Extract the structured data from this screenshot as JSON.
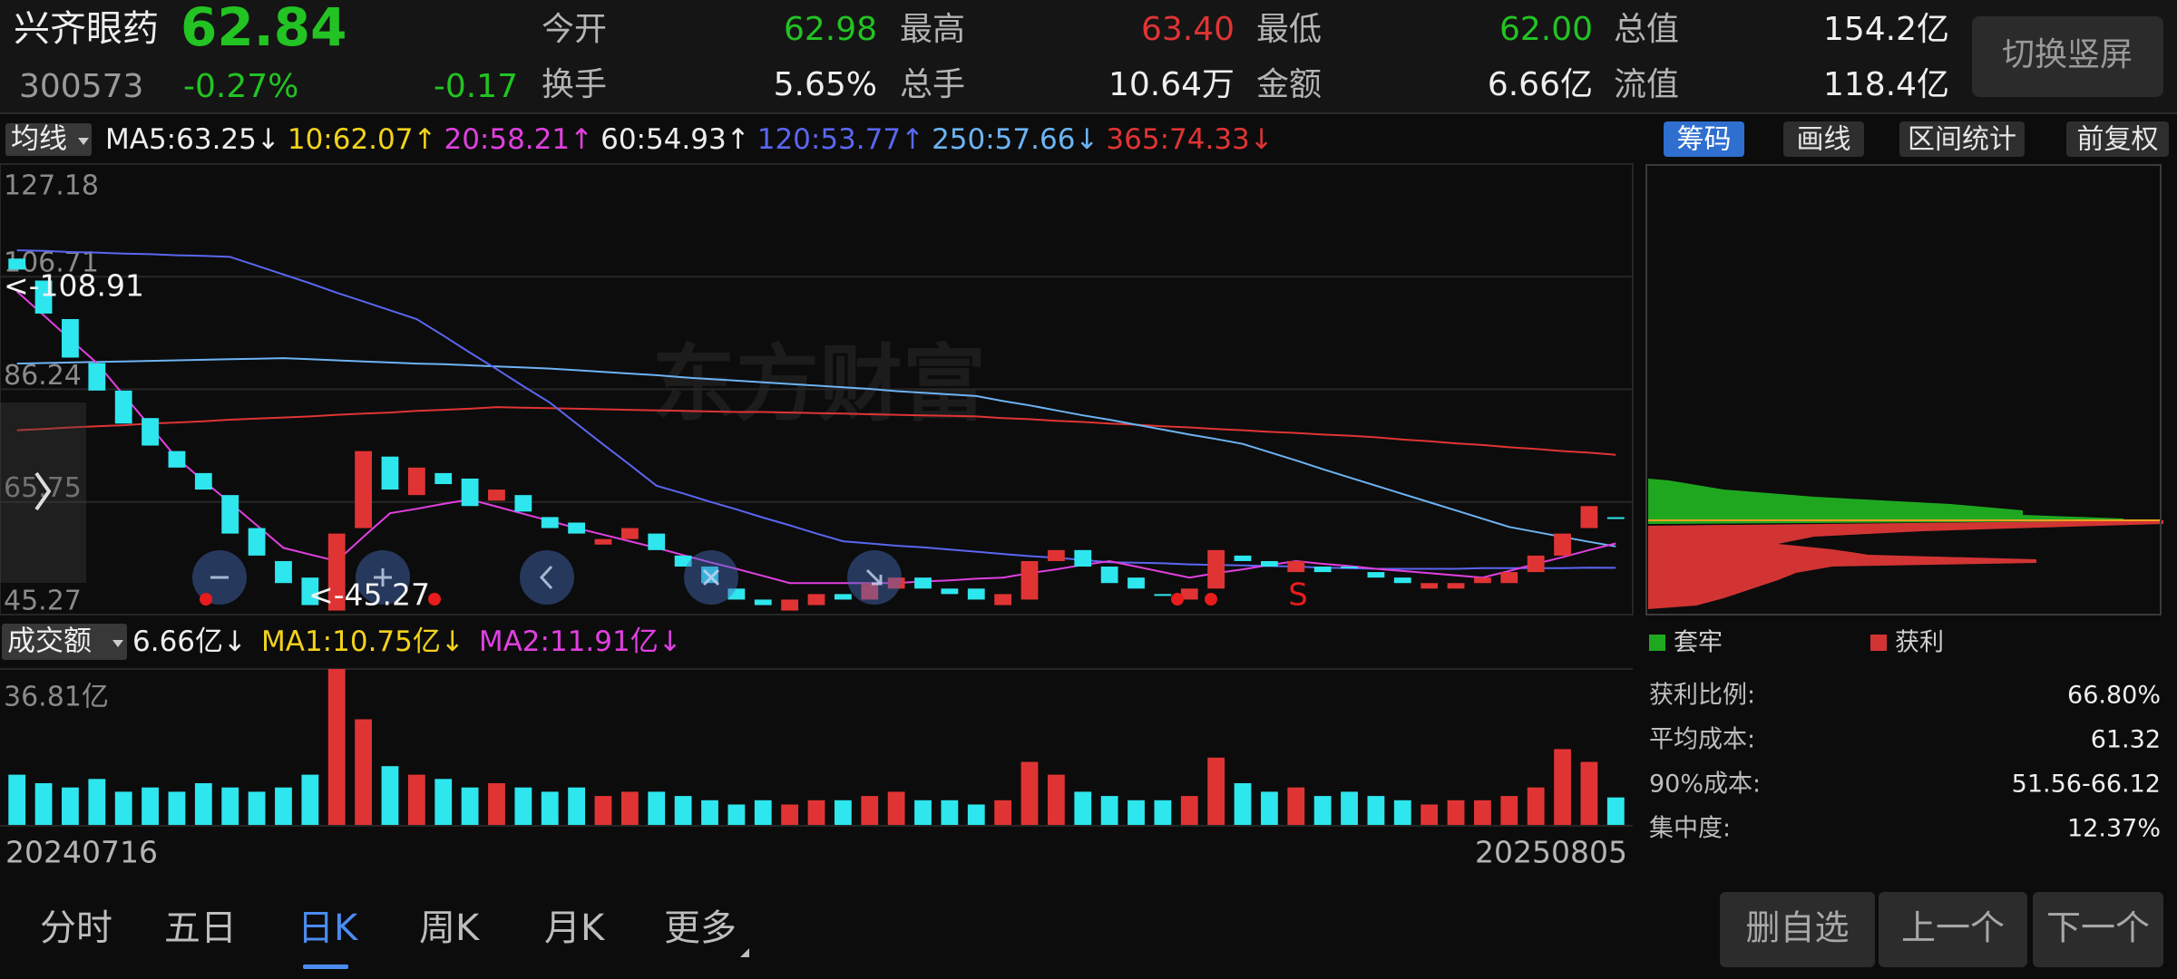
{
  "header": {
    "name": "兴齐眼药",
    "code": "300573",
    "price": "62.84",
    "change_pct": "-0.27%",
    "change": "-0.17",
    "stats": [
      {
        "label": "今开",
        "value": "62.98",
        "color": "#22c322"
      },
      {
        "label": "最高",
        "value": "63.40",
        "color": "#e03434"
      },
      {
        "label": "最低",
        "value": "62.00",
        "color": "#22c322"
      },
      {
        "label": "总值",
        "value": "154.2亿",
        "color": "#eeeeee"
      },
      {
        "label": "换手",
        "value": "5.65%",
        "color": "#eeeeee"
      },
      {
        "label": "总手",
        "value": "10.64万",
        "color": "#eeeeee"
      },
      {
        "label": "金额",
        "value": "6.66亿",
        "color": "#eeeeee"
      },
      {
        "label": "流值",
        "value": "118.4亿",
        "color": "#eeeeee"
      }
    ],
    "button": "切换竖屏"
  },
  "toolbar": {
    "indicator": "均线",
    "ma": [
      {
        "text": "MA5:63.25↓",
        "color": "#eeeeee"
      },
      {
        "text": "10:62.07↑",
        "color": "#f2d21c"
      },
      {
        "text": "20:58.21↑",
        "color": "#e040e0"
      },
      {
        "text": "60:54.93↑",
        "color": "#eeeeee"
      },
      {
        "text": "120:53.77↑",
        "color": "#5a66f0"
      },
      {
        "text": "250:57.66↓",
        "color": "#6cb4f4"
      },
      {
        "text": "365:74.33↓",
        "color": "#e03434"
      }
    ],
    "buttons": [
      "筹码",
      "画线",
      "区间统计",
      "前复权"
    ],
    "active_button": 0
  },
  "kline": {
    "watermark": "东方财富",
    "ylim": [
      45.27,
      127.18
    ],
    "yticks": [
      45.27,
      65.75,
      86.24,
      106.71,
      127.18
    ],
    "up_color": "#e03434",
    "down_color": "#2ee6ee",
    "open": [
      110,
      106,
      99,
      91,
      86,
      81,
      75,
      71,
      67,
      61,
      55,
      52,
      46,
      61,
      74,
      67,
      71,
      70,
      66,
      67,
      63,
      62,
      58,
      59,
      60,
      56,
      54,
      50,
      48,
      46,
      47,
      49,
      48,
      50,
      52,
      50,
      50,
      47,
      48,
      55,
      57,
      54,
      52,
      49,
      48,
      50,
      56,
      55,
      53,
      54,
      54,
      53,
      52,
      50,
      50,
      51,
      51,
      53,
      56,
      61,
      62.98
    ],
    "close": [
      108,
      100,
      92,
      86,
      80,
      76,
      72,
      68,
      60,
      56,
      51,
      47,
      60,
      75,
      68,
      72,
      69,
      65,
      68,
      64,
      61,
      60,
      59,
      61,
      57,
      54,
      51,
      48,
      47,
      48,
      49,
      48,
      51,
      52,
      50,
      49,
      48,
      49,
      55,
      57,
      54,
      51,
      50,
      49,
      50,
      57,
      55,
      54,
      55,
      53,
      54,
      52,
      51,
      51,
      51,
      52,
      53,
      56,
      60,
      65,
      62.84
    ],
    "ma_lines": [
      {
        "color": "#e03434",
        "values": [
          78.8,
          79.0,
          79.3,
          79.5,
          79.7,
          80.0,
          80.2,
          80.4,
          80.7,
          80.9,
          81.1,
          81.3,
          81.6,
          81.8,
          82.0,
          82.3,
          82.5,
          82.7,
          83.0,
          82.9,
          82.8,
          82.7,
          82.6,
          82.5,
          82.4,
          82.3,
          82.2,
          82.1,
          82.1,
          82.0,
          81.9,
          81.8,
          81.7,
          81.6,
          81.5,
          81.4,
          81.3,
          81.0,
          80.8,
          80.5,
          80.3,
          80.0,
          79.8,
          79.5,
          79.3,
          79.0,
          78.8,
          78.5,
          78.3,
          78.0,
          77.8,
          77.5,
          77.1,
          76.8,
          76.4,
          76.1,
          75.7,
          75.4,
          75.0,
          74.7,
          74.33
        ]
      },
      {
        "color": "#6cb4f4",
        "values": [
          90.9,
          91.0,
          91.1,
          91.2,
          91.3,
          91.4,
          91.5,
          91.6,
          91.7,
          91.8,
          91.9,
          91.7,
          91.5,
          91.3,
          91.1,
          90.9,
          90.8,
          90.6,
          90.4,
          90.2,
          90.0,
          89.7,
          89.4,
          89.1,
          88.8,
          88.4,
          88.1,
          87.8,
          87.5,
          87.2,
          86.9,
          86.6,
          86.3,
          85.9,
          85.6,
          85.3,
          85.0,
          84.1,
          83.3,
          82.4,
          81.5,
          80.7,
          79.8,
          78.9,
          78.0,
          77.2,
          76.3,
          74.8,
          73.3,
          71.7,
          70.2,
          68.7,
          67.2,
          65.7,
          64.2,
          62.7,
          61.2,
          60.3,
          59.4,
          58.5,
          57.66
        ]
      },
      {
        "color": "#5a66f0",
        "values": [
          111.5,
          111.4,
          111.2,
          111.1,
          110.9,
          110.8,
          110.6,
          110.5,
          110.3,
          108.7,
          107.1,
          105.5,
          103.8,
          102.2,
          100.6,
          99.0,
          96.0,
          92.9,
          89.9,
          86.8,
          83.8,
          80.0,
          76.2,
          72.5,
          68.7,
          67.3,
          65.8,
          64.4,
          62.9,
          61.5,
          60.0,
          58.6,
          58.2,
          57.8,
          57.5,
          57.1,
          56.7,
          56.3,
          55.9,
          55.6,
          55.2,
          54.8,
          54.7,
          54.6,
          54.4,
          54.3,
          54.2,
          54.1,
          54.0,
          53.8,
          53.7,
          53.6,
          53.6,
          53.6,
          53.6,
          53.7,
          53.7,
          53.7,
          53.7,
          53.8,
          53.77
        ]
      },
      {
        "color": "#e040e0",
        "values": [
          104,
          99.7,
          95.3,
          91,
          85.2,
          79.5,
          73.7,
          69.6,
          65.6,
          61.5,
          57.4,
          56.2,
          55,
          59.4,
          63.7,
          64.5,
          65.4,
          66.2,
          64.9,
          63.6,
          62.3,
          61,
          59.8,
          58.6,
          57.4,
          56.1,
          54.8,
          53.6,
          52.3,
          51,
          51,
          51,
          51,
          51,
          51.3,
          51.5,
          51.8,
          52,
          52.8,
          53.5,
          54.3,
          55,
          54,
          53,
          52,
          52.8,
          53.5,
          54.3,
          55,
          54.5,
          54.1,
          53.6,
          53.2,
          52.8,
          52.4,
          52,
          53.2,
          54.5,
          55.7,
          57,
          58.21
        ]
      }
    ],
    "high_note": "<-108.91",
    "low_note": "<-45.27",
    "signal": "S"
  },
  "volume": {
    "indicator": "成交额",
    "legend": [
      {
        "text": "6.66亿↓",
        "color": "#eeeeee"
      },
      {
        "text": "MA1:10.75亿↓",
        "color": "#f2d21c"
      },
      {
        "text": "MA2:11.91亿↓",
        "color": "#e040e0"
      }
    ],
    "ylim": [
      0,
      36.81
    ],
    "yticks": [
      {
        "value": 36.81,
        "label": "36.81亿"
      }
    ],
    "values": [
      12,
      10,
      9,
      11,
      8,
      9,
      8,
      10,
      9,
      8,
      9,
      12,
      36.81,
      25,
      14,
      12,
      11,
      9,
      10,
      9,
      8,
      9,
      7,
      8,
      8,
      7,
      6,
      5,
      6,
      5,
      6,
      6,
      7,
      8,
      6,
      6,
      5,
      6,
      15,
      12,
      8,
      7,
      6,
      6,
      7,
      16,
      10,
      8,
      9,
      7,
      8,
      7,
      6,
      5,
      6,
      6,
      7,
      9,
      18,
      15,
      6.66
    ],
    "dates": [
      "20240716",
      "20250805"
    ]
  },
  "chips": {
    "legend": [
      {
        "label": "套牢",
        "color": "#1fa81f"
      },
      {
        "label": "获利",
        "color": "#d23434"
      }
    ],
    "stats": [
      {
        "label": "获利比例:",
        "value": "66.80%"
      },
      {
        "label": "平均成本:",
        "value": "61.32"
      },
      {
        "label": "90%成本:",
        "value": "51.56-66.12"
      },
      {
        "label": "集中度:",
        "value": "12.37%"
      }
    ]
  },
  "tabs": [
    "分时",
    "五日",
    "日K",
    "周K",
    "月K",
    "更多"
  ],
  "active_tab": 2,
  "nav_buttons": [
    "删自选",
    "上一个",
    "下一个"
  ]
}
